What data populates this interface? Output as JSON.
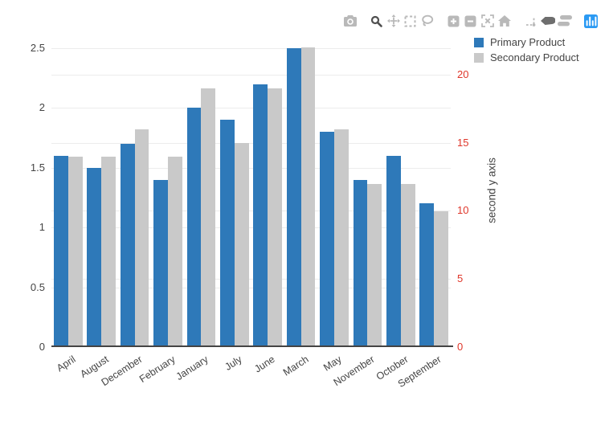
{
  "modebar": {
    "icon_color": "#b9b9b9",
    "active_icon_color": "#4f4f4f",
    "dark_icon_color": "#6e6e6e",
    "logo_color": "#2b9af3",
    "icons": [
      "camera",
      "zoom",
      "pan",
      "box-select",
      "lasso",
      "zoom-in",
      "zoom-out",
      "autoscale",
      "reset-home",
      "spikelines",
      "hover-closest",
      "hover-compare",
      "plotly-logo"
    ]
  },
  "legend": {
    "items": [
      {
        "label": "Primary Product",
        "color": "#2e79b9"
      },
      {
        "label": "Secondary Product",
        "color": "#c9c9c9"
      }
    ]
  },
  "chart_data": {
    "type": "bar",
    "bar_mode": "group",
    "categories": [
      "April",
      "August",
      "December",
      "February",
      "January",
      "July",
      "June",
      "March",
      "May",
      "November",
      "October",
      "September"
    ],
    "series": [
      {
        "name": "Primary Product",
        "yaxis": "y1",
        "color": "#2e79b9",
        "values": [
          1.6,
          1.5,
          1.7,
          1.4,
          2.0,
          1.9,
          2.2,
          2.5,
          1.8,
          1.4,
          1.6,
          1.2
        ]
      },
      {
        "name": "Secondary Product",
        "yaxis": "y2",
        "color": "#c9c9c9",
        "values": [
          14,
          14,
          16,
          14,
          19,
          15,
          19,
          22,
          16,
          12,
          12,
          10
        ]
      }
    ],
    "title": "",
    "xlabel": "",
    "y1_axis": {
      "title": "",
      "ticks": [
        0,
        0.5,
        1,
        1.5,
        2,
        2.5
      ],
      "range": [
        0,
        2.6
      ],
      "tick_color": "#444444"
    },
    "y2_axis": {
      "title": "second y axis",
      "ticks": [
        0,
        5,
        10,
        15,
        20
      ],
      "range": [
        0,
        22.83
      ],
      "tick_color": "#df362a",
      "title_color": "#444444",
      "side": "right"
    },
    "grid": true,
    "grid_color": "#ececec",
    "axis_line_color": "#444444",
    "legend_position": "top-right",
    "background_color": "#ffffff"
  }
}
